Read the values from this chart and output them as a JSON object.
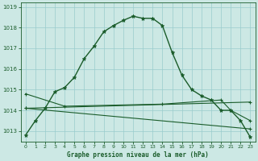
{
  "title": "Graphe pression niveau de la mer (hPa)",
  "background_color": "#cce8e4",
  "grid_color": "#99cccc",
  "line_color": "#1a5c2a",
  "hours": [
    0,
    1,
    2,
    3,
    4,
    5,
    6,
    7,
    8,
    9,
    10,
    11,
    12,
    13,
    14,
    15,
    16,
    17,
    18,
    19,
    20,
    21,
    22,
    23
  ],
  "series1": [
    1012.8,
    1013.5,
    1014.1,
    1014.9,
    1015.1,
    1015.6,
    1016.5,
    1017.1,
    1017.8,
    1018.1,
    1018.35,
    1018.55,
    1018.45,
    1018.45,
    1018.1,
    1016.8,
    1015.7,
    1015.0,
    1014.7,
    1014.5,
    1014.0,
    1014.0,
    1013.5,
    1012.7
  ],
  "series2_x": [
    0,
    23
  ],
  "series2_y": [
    1014.1,
    1014.4
  ],
  "series3_x": [
    0,
    4,
    14,
    20,
    21,
    23
  ],
  "series3_y": [
    1014.8,
    1014.2,
    1014.3,
    1014.5,
    1014.0,
    1013.5
  ],
  "series4_x": [
    0,
    23
  ],
  "series4_y": [
    1014.1,
    1013.1
  ],
  "ylim": [
    1012.5,
    1019.2
  ],
  "yticks": [
    1013,
    1014,
    1015,
    1016,
    1017,
    1018,
    1019
  ],
  "xlim": [
    -0.5,
    23.5
  ],
  "xticks": [
    0,
    1,
    2,
    3,
    4,
    5,
    6,
    7,
    8,
    9,
    10,
    11,
    12,
    13,
    14,
    15,
    16,
    17,
    18,
    19,
    20,
    21,
    22,
    23
  ],
  "figsize": [
    3.2,
    2.0
  ],
  "dpi": 100
}
